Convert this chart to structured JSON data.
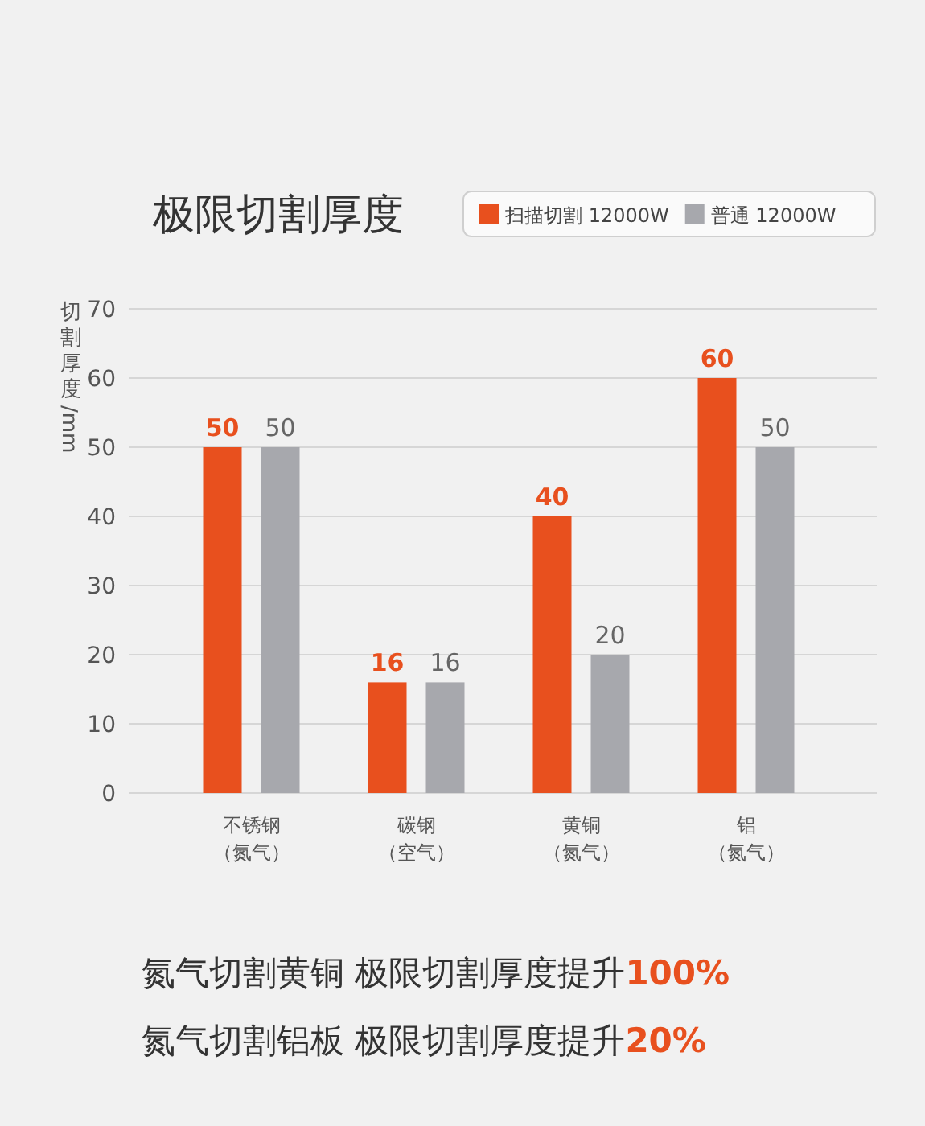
{
  "chart_data": {
    "type": "bar",
    "title": "极限切割厚度",
    "ylabel": "切割厚度/mm",
    "categories": [
      "不锈钢（氮气）",
      "碳钢（空气）",
      "黄铜（氮气）",
      "铝（氮气）"
    ],
    "series": [
      {
        "name": "扫描切割 12000W",
        "color": "#e8501e",
        "values": [
          50,
          16,
          40,
          60
        ]
      },
      {
        "name": "普通 12000W",
        "color": "#a7a8ad",
        "values": [
          50,
          16,
          20,
          50
        ]
      }
    ],
    "ylim": [
      0,
      70
    ],
    "yticks": [
      0,
      10,
      20,
      30,
      40,
      50,
      60,
      70
    ],
    "grid": "y",
    "legend": "top right",
    "data_labels": true,
    "annotations": [
      "氮气切割黄铜  极限切割厚度提升100%",
      "氮气切割铝板  极限切割厚度提升20%"
    ]
  }
}
